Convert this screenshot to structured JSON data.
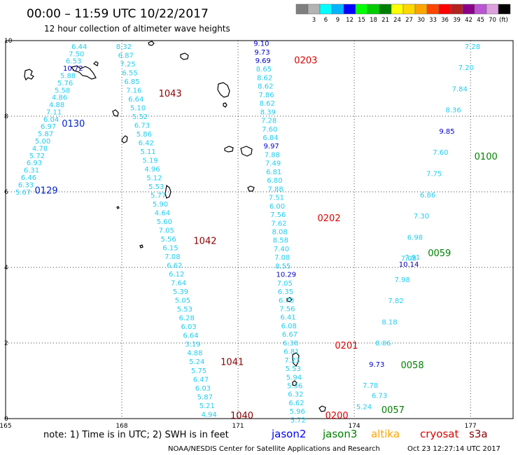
{
  "header": {
    "title": "00:00 – 11:59 UTC 10/22/2017",
    "subtitle": "12 hour collection of altimeter wave heights"
  },
  "legend": {
    "unit": "(ft)",
    "bins": [
      {
        "label": "",
        "color": "#7f7f7f"
      },
      {
        "label": "3",
        "color": "#b3b3b3"
      },
      {
        "label": "6",
        "color": "#00ffff"
      },
      {
        "label": "9",
        "color": "#00b4ff"
      },
      {
        "label": "12",
        "color": "#0000ff"
      },
      {
        "label": "15",
        "color": "#00ff00"
      },
      {
        "label": "18",
        "color": "#00cc00"
      },
      {
        "label": "21",
        "color": "#008000"
      },
      {
        "label": "24",
        "color": "#ffff00"
      },
      {
        "label": "27",
        "color": "#ffd700"
      },
      {
        "label": "30",
        "color": "#ffa500"
      },
      {
        "label": "33",
        "color": "#ff4500"
      },
      {
        "label": "36",
        "color": "#ff0000"
      },
      {
        "label": "39",
        "color": "#b22222"
      },
      {
        "label": "42",
        "color": "#8b008b"
      },
      {
        "label": "45",
        "color": "#ba55d3"
      },
      {
        "label": "70",
        "color": "#dda0dd"
      },
      {
        "label": "",
        "color": "#000000"
      }
    ]
  },
  "axes": {
    "x_ticks": [
      "165",
      "168",
      "171",
      "174",
      "177"
    ],
    "y_ticks": [
      "0",
      "2",
      "4",
      "6",
      "8",
      "10"
    ]
  },
  "tracks": [
    {
      "name": "track-a",
      "color": "#22ccee",
      "start": [
        165.25,
        5.93
      ],
      "end": [
        166.7,
        9.78
      ],
      "values": [
        "5.67",
        "6.33",
        "6.46",
        "6.31",
        "6.93",
        "5.72",
        "4.78",
        "5.00",
        "5.87",
        "6.97",
        "6.04",
        "7.11",
        "4.88",
        "4.86",
        "5.58",
        "5.76",
        "5.88",
        "10.72",
        "6.53",
        "7.50",
        "6.44"
      ],
      "highlight": {
        "10.72": "#0000cc"
      },
      "times": [
        {
          "label": "0129",
          "lon": 165.75,
          "lat": 5.95,
          "color": "#0022cc"
        },
        {
          "label": "0130",
          "lon": 166.45,
          "lat": 7.72,
          "color": "#0022cc"
        }
      ]
    },
    {
      "name": "track-b",
      "color": "#22ccee",
      "start": [
        170.05,
        0.05
      ],
      "end": [
        167.85,
        9.78
      ],
      "values": [
        "4.94",
        "5.21",
        "5.87",
        "6.03",
        "6.47",
        "5.75",
        "5.24",
        "4.88",
        "3.19",
        "6.64",
        "6.03",
        "6.28",
        "5.53",
        "5.05",
        "5.39",
        "7.64",
        "6.12",
        "6.62",
        "7.08",
        "6.15",
        "5.56",
        "7.05",
        "5.60",
        "4.64",
        "5.90",
        "5.77",
        "5.53",
        "5.12",
        "4.96",
        "5.19",
        "5.11",
        "6.42",
        "5.86",
        "6.73",
        "5.52",
        "5.10",
        "6.64",
        "7.16",
        "6.85",
        "6.55",
        "7.25",
        "6.87",
        "8.32"
      ],
      "highlight": {},
      "times": [
        {
          "label": "1040",
          "lon": 170.8,
          "lat": 0.0,
          "color": "#8b0000"
        },
        {
          "label": "1041",
          "lon": 170.55,
          "lat": 1.42,
          "color": "#8b0000"
        },
        {
          "label": "1042",
          "lon": 169.85,
          "lat": 4.62,
          "color": "#8b0000"
        },
        {
          "label": "1043",
          "lon": 168.95,
          "lat": 8.52,
          "color": "#8b0000"
        }
      ]
    },
    {
      "name": "track-c",
      "color": "#22ccee",
      "start": [
        172.35,
        -0.1
      ],
      "end": [
        171.4,
        9.86
      ],
      "values": [
        "5.72",
        "5.96",
        "6.62",
        "6.32",
        "5.36",
        "5.94",
        "5.53",
        "7.23",
        "6.81",
        "6.38",
        "6.67",
        "6.08",
        "6.41",
        "7.56",
        "6.70",
        "6.35",
        "7.05",
        "10.29",
        "8.55",
        "7.08",
        "7.40",
        "8.58",
        "8.08",
        "7.62",
        "7.56",
        "6.00",
        "7.51",
        "7.88",
        "6.80",
        "6.81",
        "7.49",
        "7.88",
        "9.97",
        "6.84",
        "7.60",
        "7.28",
        "8.39",
        "8.62",
        "7.86",
        "8.62",
        "8.62",
        "8.65",
        "9.69",
        "9.73",
        "9.10"
      ],
      "highlight": {
        "10.29": "#0000cc",
        "9.97": "#0000cc",
        "9.69": "#0000cc",
        "9.73": "#0000cc",
        "9.10": "#0000cc"
      },
      "times": [
        {
          "label": "0200",
          "lon": 173.25,
          "lat": 0.0,
          "color": "#dd0000"
        },
        {
          "label": "0201",
          "lon": 173.5,
          "lat": 1.85,
          "color": "#dd0000"
        },
        {
          "label": "0202",
          "lon": 173.05,
          "lat": 5.22,
          "color": "#dd0000"
        },
        {
          "label": "0203",
          "lon": 172.45,
          "lat": 9.4,
          "color": "#dd0000"
        }
      ]
    },
    {
      "name": "track-d",
      "color": "#22ccee",
      "start": [
        174.05,
        0.25
      ],
      "end": [
        176.85,
        9.78
      ],
      "values": [
        "5.24",
        "7.78",
        "9.73",
        "8.86",
        "8.18",
        "7.82",
        "7.98",
        "7.08",
        "6.98",
        "7.30",
        "6.86",
        "7.75",
        "7.60",
        "9.85",
        "8.36",
        "7.84",
        "7.20",
        "7.28"
      ],
      "highlight": {
        "9.85": "#0000cc",
        "9.73": "#0000cc"
      },
      "times": [
        {
          "label": "0057",
          "lon": 174.7,
          "lat": 0.15,
          "color": "#008000"
        },
        {
          "label": "0058",
          "lon": 175.2,
          "lat": 1.33,
          "color": "#008000"
        },
        {
          "label": "0059",
          "lon": 175.9,
          "lat": 4.3,
          "color": "#008000"
        },
        {
          "label": "0100",
          "lon": 177.1,
          "lat": 6.85,
          "color": "#008000"
        }
      ]
    }
  ],
  "dense_labels": [
    {
      "label": "10.14",
      "lon": 175.15,
      "lat": 4.02,
      "color": "#0000aa"
    },
    {
      "label": "7.91",
      "lon": 175.3,
      "lat": 4.2,
      "color": "#22ccee"
    },
    {
      "label": "6.73",
      "lon": 174.45,
      "lat": 0.55,
      "color": "#22ccee"
    }
  ],
  "footer": {
    "note": "note:  1) Time is in UTC;  2) SWH is in feet",
    "satellites": [
      {
        "label": "jason2",
        "color": "#0000ff"
      },
      {
        "label": "jason3",
        "color": "#008000"
      },
      {
        "label": "altika",
        "color": "#ffa500"
      },
      {
        "label": "cryosat",
        "color": "#dd0000"
      },
      {
        "label": "s3a",
        "color": "#8b0000"
      }
    ],
    "credit_left": "NOAA/NESDIS Center for Satellite Applications and Research",
    "credit_right": "Oct 23 12:27:14 UTC 2017"
  },
  "map_extent": {
    "lon": [
      165,
      178.1
    ],
    "lat": [
      0,
      10
    ]
  }
}
